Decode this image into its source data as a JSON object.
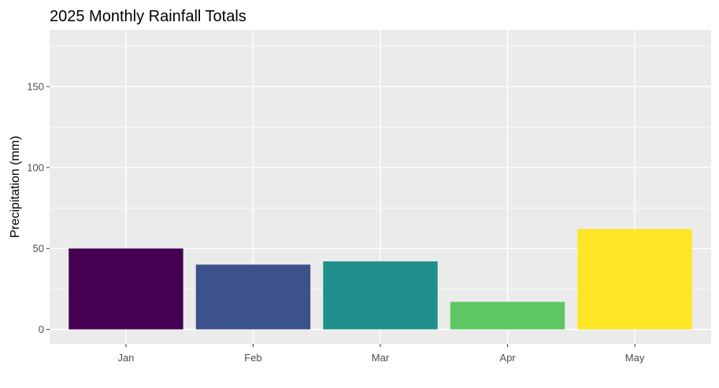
{
  "chart_data": {
    "type": "bar",
    "title": "2025 Monthly Rainfall Totals",
    "xlabel": "",
    "ylabel": "Precipitation (mm)",
    "categories": [
      "Jan",
      "Feb",
      "Mar",
      "Apr",
      "May"
    ],
    "values": [
      50,
      40,
      42,
      17,
      62
    ],
    "colors": [
      "#440154",
      "#3B528B",
      "#21908C",
      "#5DC863",
      "#FDE725"
    ],
    "ylim": [
      -9,
      185
    ],
    "yticks": [
      0,
      50,
      100,
      150
    ],
    "grid": true,
    "legend": "none",
    "panel_background": "#EBEBEB",
    "gridline_color": "#FFFFFF"
  }
}
